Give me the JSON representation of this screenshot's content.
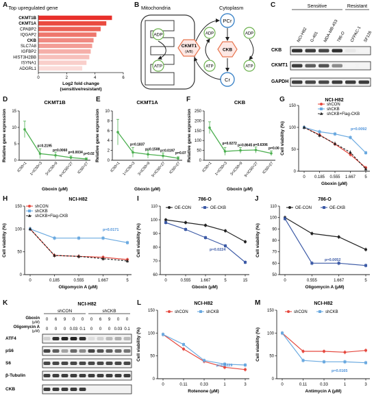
{
  "figure": {
    "panel_letters": [
      "A",
      "B",
      "C",
      "D",
      "E",
      "F",
      "G",
      "H",
      "I",
      "J",
      "K",
      "L",
      "M"
    ]
  },
  "panelA": {
    "title": "Top upregulated gene",
    "bold_genes": [
      "CKMT1B",
      "CKMT1A",
      "CKB"
    ],
    "xlabel_line1": "Log2 fold change",
    "xlabel_line2": "(sensitive/resistant)",
    "chart_data": {
      "type": "bar",
      "orientation": "horizontal",
      "categories": [
        "CKMT1B",
        "CKMT1A",
        "CPABP2",
        "IQGAP2",
        "CKB",
        "SLC7A8",
        "IGFBP2",
        "HIST3H2BB",
        "ISYNA1",
        "ADGRL1"
      ],
      "values": [
        5.2,
        4.8,
        4.4,
        4.1,
        3.9,
        3.8,
        3.7,
        3.6,
        3.4,
        3.1
      ],
      "xlim": [
        0,
        6
      ],
      "xticks": [
        0,
        2,
        4,
        6
      ],
      "title": "Top upregulated gene",
      "xlabel": "Log2 fold change (sensitive/resistant)"
    }
  },
  "panelB": {
    "mito_label": "Mitochondria",
    "cyto_label": "Cytoplasm",
    "nodes": {
      "adp_left": "ADP",
      "atp_left": "ATP",
      "ckmt1": "CKMT1",
      "ckmt1_sub": "(A/B)",
      "ckb": "CKB",
      "pcr": "PCr",
      "cr": "Cr",
      "adp_c1": "ADP",
      "adp_c2": "ADP",
      "atp_c1": "ATP",
      "atp_c2": "ATP"
    }
  },
  "panelC": {
    "group_sensitive": "Sensitive",
    "group_resistant": "Resistant",
    "cell_lines": [
      "NCI-H82",
      "G-401",
      "MDA-MB-453",
      "786-O",
      "CFPAC-1",
      "SF126"
    ],
    "rows": [
      "CKB",
      "CKMT1",
      "GAPDH"
    ],
    "intensity": {
      "CKB": [
        0.9,
        0.85,
        0.8,
        0.9,
        0.1,
        0.05
      ],
      "CKMT1": [
        0.85,
        0.7,
        0.75,
        0.5,
        0.05,
        0.05
      ],
      "GAPDH": [
        0.85,
        0.8,
        0.8,
        0.85,
        0.85,
        0.85
      ]
    }
  },
  "ic_groups": [
    "IC50<1",
    "1<IC50<3",
    "3<IC50<9",
    "9<IC50<27",
    "IC50>27"
  ],
  "panelD": {
    "title": "CKMT1B",
    "ylabel": "Relative gene expression",
    "xlabel": "Gboxin (μM)",
    "pvals": [
      "p=0.2195",
      "p=0.0060",
      "p=0.0034",
      "p=0.0259"
    ],
    "chart_data": {
      "type": "line",
      "title": "CKMT1B",
      "ylim": [
        0,
        15
      ],
      "yticks": [
        0,
        5,
        10,
        15
      ],
      "values": [
        9.4,
        2.0,
        1.5,
        0.8,
        0.4
      ],
      "err": [
        2.5,
        1.5,
        1.0,
        0.5,
        0.3
      ]
    }
  },
  "panelE": {
    "title": "CKMT1A",
    "ylabel": "Relative gene expression",
    "xlabel": "Gboxin (μM)",
    "pvals": [
      "p=0.1837",
      "p=0.1508",
      "p=0.0197",
      "p=0.0704"
    ],
    "chart_data": {
      "type": "line",
      "title": "CKMT1A",
      "ylim": [
        0,
        10
      ],
      "yticks": [
        0,
        2,
        4,
        6,
        8,
        10
      ],
      "values": [
        5.7,
        1.6,
        1.2,
        0.9,
        0.4
      ],
      "err": [
        2.6,
        1.0,
        0.8,
        0.6,
        0.3
      ]
    }
  },
  "panelF": {
    "title": "CKB",
    "ylabel": "Relative gene expression",
    "xlabel": "Gboxin (μM)",
    "pvals": [
      "p=0.0272",
      "p=0.8645",
      "p=0.6306",
      "p=0.0044"
    ],
    "chart_data": {
      "type": "line",
      "title": "CKB",
      "ylim": [
        0,
        250
      ],
      "yticks": [
        0,
        50,
        100,
        150,
        200,
        250
      ],
      "values": [
        165,
        45,
        50,
        52,
        35
      ],
      "err": [
        30,
        20,
        15,
        15,
        12
      ]
    }
  },
  "panelG": {
    "title": "NCI-H82",
    "ylabel": "Cell viability (%)",
    "xlabel": "Gboxin (μM)",
    "legend": [
      "shCON",
      "shCKB",
      "shCKB+Flag-CKB"
    ],
    "pval": "p=0.0092",
    "chart_data": {
      "type": "line",
      "title": "NCI-H82",
      "xticks": [
        "0",
        "0.185",
        "0.555",
        "1.667",
        "5"
      ],
      "ylim": [
        0,
        150
      ],
      "yticks": [
        0,
        50,
        100,
        150
      ],
      "series": [
        {
          "name": "shCON",
          "values": [
            100,
            83,
            62,
            38,
            8
          ]
        },
        {
          "name": "shCKB",
          "values": [
            100,
            90,
            85,
            77,
            42
          ]
        },
        {
          "name": "shCKB+Flag-CKB",
          "values": [
            100,
            82,
            63,
            43,
            5
          ]
        }
      ]
    }
  },
  "panelH": {
    "title": "NCI-H82",
    "ylabel": "Cell viability (%)",
    "xlabel": "Oligomycin A (μM)",
    "legend": [
      "shCON",
      "shCKB",
      "shCKB+Flag-CKB"
    ],
    "pval": "p=0.0171",
    "chart_data": {
      "type": "line",
      "title": "NCI-H82",
      "xticks": [
        "0",
        "0.185",
        "0.555",
        "1.667",
        "5"
      ],
      "ylim": [
        0,
        150
      ],
      "yticks": [
        0,
        50,
        100,
        150
      ],
      "series": [
        {
          "name": "shCON",
          "values": [
            100,
            42,
            40,
            38,
            33
          ]
        },
        {
          "name": "shCKB",
          "values": [
            100,
            80,
            80,
            80,
            70
          ]
        },
        {
          "name": "shCKB+Flag-CKB",
          "values": [
            100,
            42,
            40,
            35,
            30
          ]
        }
      ]
    }
  },
  "panelI": {
    "title": "786-O",
    "ylabel": "Cell viability (%)",
    "xlabel": "Gboxin (μM)",
    "legend": [
      "OE-CON",
      "OE-CKB"
    ],
    "pval": "p=0.0224",
    "chart_data": {
      "type": "line",
      "title": "786-O",
      "xticks": [
        "0",
        "0.555",
        "1.667",
        "5",
        "15"
      ],
      "ylim": [
        60,
        110
      ],
      "yticks": [
        60,
        70,
        80,
        90,
        100,
        110
      ],
      "series": [
        {
          "name": "OE-CON",
          "values": [
            100,
            98,
            96,
            92,
            84
          ]
        },
        {
          "name": "OE-CKB",
          "values": [
            98,
            93,
            87,
            81,
            69
          ]
        }
      ]
    }
  },
  "panelJ": {
    "title": "786-O",
    "ylabel": "Cell viability (%)",
    "xlabel": "Oligomycin A (μM)",
    "legend": [
      "OE-CON",
      "OE-CKB"
    ],
    "pval": "p=0.0052",
    "chart_data": {
      "type": "line",
      "title": "786-O",
      "xticks": [
        "0",
        "0.555",
        "1.667",
        "5"
      ],
      "ylim": [
        50,
        110
      ],
      "yticks": [
        50,
        60,
        70,
        80,
        90,
        100,
        110
      ],
      "series": [
        {
          "name": "OE-CON",
          "values": [
            100,
            86,
            83,
            72
          ]
        },
        {
          "name": "OE-CKB",
          "values": [
            99,
            60,
            60,
            58
          ]
        }
      ]
    }
  },
  "panelK": {
    "title": "NCI-H82",
    "groups": [
      "shCON",
      "shCKB"
    ],
    "gboxin_label": "Gboxin",
    "gboxin_unit": "(μM)",
    "oligo_label": "Oligomycin A",
    "oligo_unit": "(μM)",
    "gboxin": [
      "0",
      "6",
      "9",
      "0",
      "0",
      "0",
      "6",
      "9",
      "0",
      "0"
    ],
    "oligo": [
      "0",
      "0",
      "0",
      "0.03",
      "0.1",
      "0",
      "0",
      "0",
      "0.03",
      "0.1"
    ],
    "rows": [
      "ATF4",
      "pS6",
      "S6",
      "β-Tubulin",
      "CKB"
    ],
    "intensity": {
      "ATF4": [
        0.2,
        0.9,
        0.95,
        0.95,
        0.9,
        0.15,
        0.2,
        0.3,
        0.35,
        0.3
      ],
      "pS6": [
        0.8,
        0.7,
        0.4,
        0.65,
        0.5,
        0.8,
        0.75,
        0.7,
        0.65,
        0.6
      ],
      "S6": [
        0.8,
        0.8,
        0.8,
        0.8,
        0.8,
        0.8,
        0.8,
        0.8,
        0.8,
        0.8
      ],
      "β-Tubulin": [
        0.85,
        0.85,
        0.85,
        0.85,
        0.85,
        0.85,
        0.85,
        0.85,
        0.85,
        0.85
      ],
      "CKB": [
        0.85,
        0.85,
        0.85,
        0.85,
        0.85,
        0.0,
        0.0,
        0.0,
        0.0,
        0.0
      ]
    }
  },
  "panelL": {
    "title": "NCI-H82",
    "ylabel": "Cell viability (%)",
    "xlabel": "Rotenone (μM)",
    "legend": [
      "shCON",
      "shCKB"
    ],
    "pval": "p=0.0229",
    "chart_data": {
      "type": "line",
      "title": "NCI-H82",
      "xticks": [
        "0",
        "0.11",
        "0.33",
        "1",
        "3"
      ],
      "ylim": [
        0,
        150
      ],
      "yticks": [
        0,
        50,
        100,
        150
      ],
      "series": [
        {
          "name": "shCON",
          "values": [
            97,
            65,
            38,
            25,
            20
          ]
        },
        {
          "name": "shCKB",
          "values": [
            97,
            75,
            40,
            32,
            30
          ]
        }
      ]
    }
  },
  "panelM": {
    "title": "NCI-H82",
    "ylabel": "Cell viability (%)",
    "xlabel": "Antimycin A (μM)",
    "legend": [
      "shCON",
      "shCKB"
    ],
    "pval": "p=0.0165",
    "chart_data": {
      "type": "line",
      "title": "NCI-H82",
      "xticks": [
        "0",
        "0.11",
        "0.33",
        "1",
        "3"
      ],
      "ylim": [
        0,
        150
      ],
      "yticks": [
        0,
        50,
        100,
        150
      ],
      "series": [
        {
          "name": "shCON",
          "values": [
            100,
            60,
            60,
            58,
            62
          ]
        },
        {
          "name": "shCKB",
          "values": [
            100,
            40,
            37,
            37,
            35
          ]
        }
      ]
    }
  }
}
